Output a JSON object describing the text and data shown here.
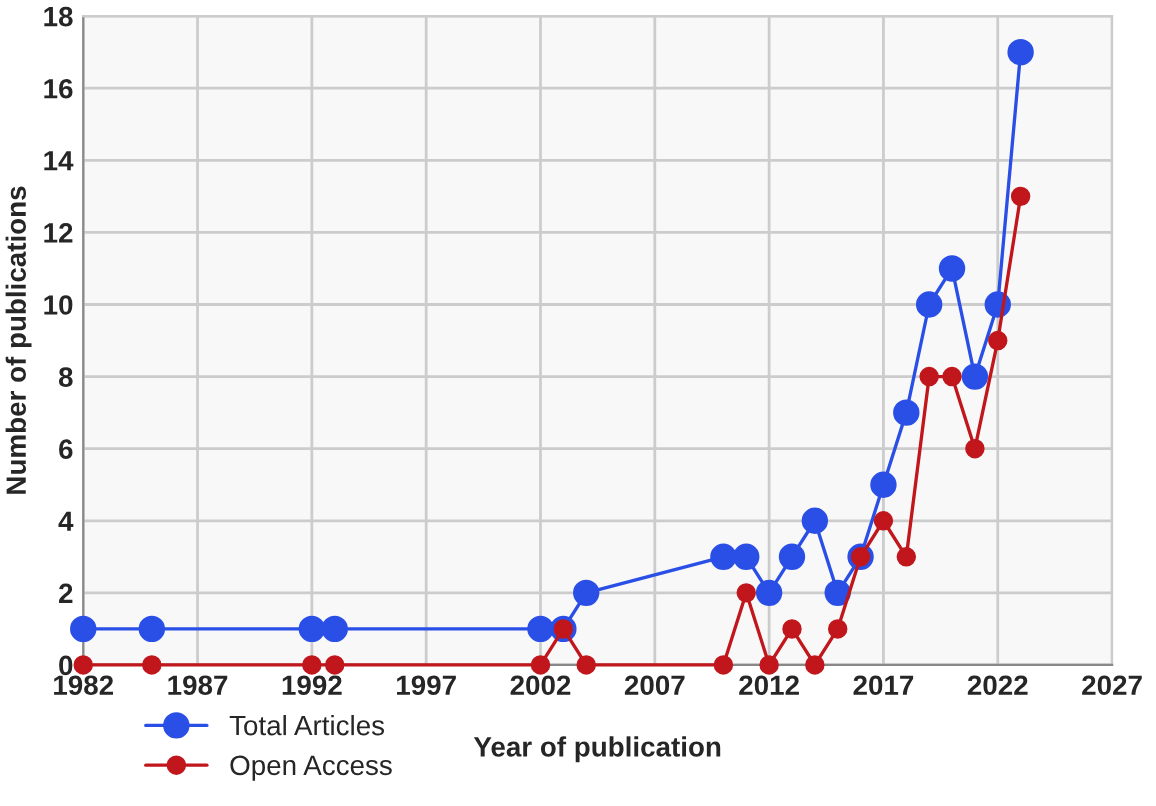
{
  "chart_data": {
    "type": "line",
    "xlabel": "Year of publication",
    "ylabel": "Number of publications",
    "xlim": [
      1982,
      2027
    ],
    "xticks": [
      1982,
      1987,
      1992,
      1997,
      2002,
      2007,
      2012,
      2017,
      2022,
      2027
    ],
    "ylim": [
      0,
      18
    ],
    "yticks": [
      0,
      2,
      4,
      6,
      8,
      10,
      12,
      14,
      16,
      18
    ],
    "grid": true,
    "legend": "bottom left",
    "marker": "circle",
    "line_style": "solid",
    "series": [
      {
        "name": "Total Articles",
        "color": "#2a4fe6",
        "x": [
          1982,
          1985,
          1992,
          1993,
          2002,
          2003,
          2004,
          2010,
          2011,
          2012,
          2013,
          2014,
          2015,
          2016,
          2017,
          2018,
          2019,
          2020,
          2021,
          2022,
          2023
        ],
        "values": [
          1,
          1,
          1,
          1,
          1,
          1,
          2,
          3,
          3,
          2,
          3,
          4,
          2,
          3,
          5,
          7,
          10,
          11,
          8,
          10,
          17
        ]
      },
      {
        "name": "Open Access",
        "color": "#c0161c",
        "x": [
          1982,
          1985,
          1992,
          1993,
          2002,
          2003,
          2004,
          2010,
          2011,
          2012,
          2013,
          2014,
          2015,
          2016,
          2017,
          2018,
          2019,
          2020,
          2021,
          2022,
          2023
        ],
        "values": [
          0,
          0,
          0,
          0,
          0,
          1,
          0,
          0,
          2,
          0,
          1,
          0,
          1,
          3,
          4,
          3,
          8,
          8,
          6,
          9,
          13
        ]
      }
    ]
  }
}
